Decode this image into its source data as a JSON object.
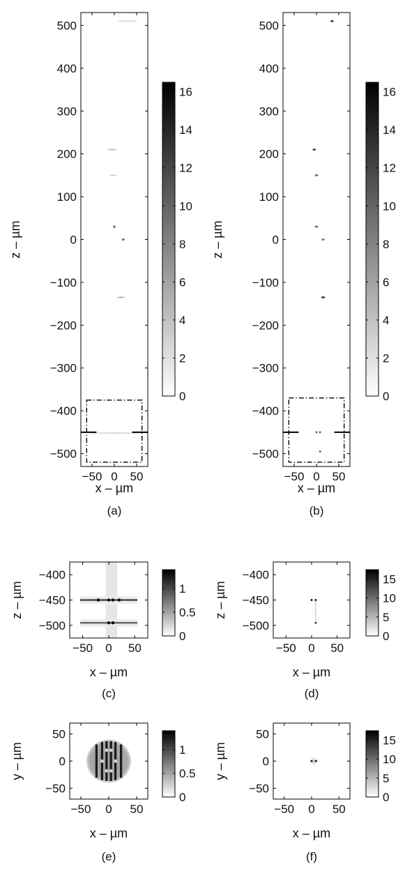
{
  "chart_data": [
    {
      "id": "a",
      "type": "heatmap",
      "caption": "(a)",
      "xlabel": "x – µm",
      "ylabel": "z – µm",
      "xlim": [
        -75,
        75
      ],
      "ylim": [
        -530,
        530
      ],
      "xticks": [
        -50,
        0,
        50
      ],
      "yticks": [
        500,
        400,
        300,
        200,
        100,
        0,
        -100,
        -200,
        -300,
        -400,
        -500
      ],
      "colorbar": {
        "min": 0,
        "max": 16.5,
        "ticks": [
          16,
          14,
          12,
          10,
          8,
          6,
          4,
          2,
          0
        ]
      },
      "features": [
        {
          "x": -5,
          "z": 210,
          "intensity": 0.25,
          "w": 14,
          "h": 2
        },
        {
          "x": -3,
          "z": 150,
          "intensity": 0.2,
          "w": 10,
          "h": 2
        },
        {
          "x": 0,
          "z": 30,
          "intensity": 0.45,
          "w": 4,
          "h": 4
        },
        {
          "x": 20,
          "z": 0,
          "intensity": 0.6,
          "w": 4,
          "h": 3
        },
        {
          "x": 15,
          "z": -135,
          "intensity": 0.3,
          "w": 12,
          "h": 2
        },
        {
          "x": 0,
          "z": -452,
          "intensity": 0.15,
          "w": 70,
          "h": 2
        },
        {
          "x": 30,
          "z": 510,
          "intensity": 0.15,
          "w": 30,
          "h": 1
        }
      ],
      "marker_line_z": -450,
      "zoom_box": {
        "x": [
          -62,
          62
        ],
        "z": [
          -375,
          -520
        ]
      }
    },
    {
      "id": "b",
      "type": "heatmap",
      "caption": "(b)",
      "xlabel": "x – µm",
      "ylabel": "z – µm",
      "xlim": [
        -75,
        75
      ],
      "ylim": [
        -530,
        530
      ],
      "xticks": [
        -50,
        0,
        50
      ],
      "yticks": [
        500,
        400,
        300,
        200,
        100,
        0,
        -100,
        -200,
        -300,
        -400,
        -500
      ],
      "colorbar": {
        "min": 0,
        "max": 16.5,
        "ticks": [
          16,
          14,
          12,
          10,
          8,
          6,
          4,
          2,
          0
        ]
      },
      "features": [
        {
          "x": -5,
          "z": 210,
          "intensity": 0.7,
          "w": 5,
          "h": 3
        },
        {
          "x": 0,
          "z": 150,
          "intensity": 0.55,
          "w": 5,
          "h": 3
        },
        {
          "x": 0,
          "z": 30,
          "intensity": 0.55,
          "w": 5,
          "h": 3
        },
        {
          "x": 15,
          "z": 0,
          "intensity": 0.5,
          "w": 5,
          "h": 3
        },
        {
          "x": 15,
          "z": -135,
          "intensity": 0.7,
          "w": 6,
          "h": 3
        },
        {
          "x": 35,
          "z": 510,
          "intensity": 0.7,
          "w": 5,
          "h": 3
        },
        {
          "x": 0,
          "z": -450,
          "intensity": 0.6,
          "w": 3,
          "h": 3
        },
        {
          "x": 8,
          "z": -450,
          "intensity": 0.6,
          "w": 3,
          "h": 3
        },
        {
          "x": 8,
          "z": -495,
          "intensity": 0.6,
          "w": 3,
          "h": 3
        }
      ],
      "marker_line_z": -450,
      "zoom_box": {
        "x": [
          -62,
          62
        ],
        "z": [
          -370,
          -520
        ]
      }
    },
    {
      "id": "c",
      "type": "heatmap",
      "caption": "(c)",
      "xlabel": "x – µm",
      "ylabel": "z – µm",
      "xlim": [
        -75,
        75
      ],
      "ylim": [
        -525,
        -375
      ],
      "xticks": [
        -50,
        0,
        50
      ],
      "yticks": [
        -400,
        -450,
        -500
      ],
      "colorbar": {
        "min": 0,
        "max": 1.4,
        "ticks": [
          1,
          0.5,
          0
        ]
      },
      "bands": [
        {
          "z": -450,
          "xmin": -55,
          "xmax": 55,
          "intensity": 0.85
        },
        {
          "z": -495,
          "xmin": -55,
          "xmax": 55,
          "intensity": 0.7
        }
      ],
      "vertical_streaks": [
        -2,
        4,
        12
      ],
      "hotspots": [
        {
          "x": -20,
          "z": -450
        },
        {
          "x": 0,
          "z": -450
        },
        {
          "x": 8,
          "z": -450
        },
        {
          "x": 20,
          "z": -450
        },
        {
          "x": 0,
          "z": -495
        },
        {
          "x": 8,
          "z": -495
        }
      ]
    },
    {
      "id": "d",
      "type": "heatmap",
      "caption": "(d)",
      "xlabel": "x – µm",
      "ylabel": "z – µm",
      "xlim": [
        -75,
        75
      ],
      "ylim": [
        -525,
        -375
      ],
      "xticks": [
        -50,
        0,
        50
      ],
      "yticks": [
        -400,
        -450,
        -500
      ],
      "colorbar": {
        "min": 0,
        "max": 17.5,
        "ticks": [
          15,
          10,
          5,
          0
        ]
      },
      "features": [
        {
          "x": 0,
          "z": -450,
          "intensity": 0.9,
          "w": 3,
          "h": 3
        },
        {
          "x": 8,
          "z": -450,
          "intensity": 0.9,
          "w": 3,
          "h": 3
        },
        {
          "x": 8,
          "z": -495,
          "intensity": 0.75,
          "w": 3,
          "h": 3
        }
      ],
      "faint_line": {
        "x": 8,
        "z": [
          -450,
          -495
        ]
      }
    },
    {
      "id": "e",
      "type": "heatmap",
      "caption": "(e)",
      "xlabel": "x – µm",
      "ylabel": "y – µm",
      "xlim": [
        -70,
        70
      ],
      "ylim": [
        -70,
        70
      ],
      "xticks": [
        -50,
        0,
        50
      ],
      "yticks": [
        50,
        0,
        -50
      ],
      "colorbar": {
        "min": 0,
        "max": 1.4,
        "ticks": [
          1,
          0.5,
          0
        ]
      },
      "disk": {
        "cx": 0,
        "cy": 0,
        "r": 40
      },
      "stripes": [
        -22,
        -12,
        -4,
        4,
        12,
        22
      ],
      "hotspots": [
        {
          "x": -4,
          "y": 20
        },
        {
          "x": 4,
          "y": 20
        },
        {
          "x": -4,
          "y": -18
        },
        {
          "x": 4,
          "y": -18
        },
        {
          "x": -12,
          "y": 0
        },
        {
          "x": 12,
          "y": 0
        }
      ]
    },
    {
      "id": "f",
      "type": "heatmap",
      "caption": "(f)",
      "xlabel": "x – µm",
      "ylabel": "y – µm",
      "xlim": [
        -70,
        70
      ],
      "ylim": [
        -70,
        70
      ],
      "xticks": [
        -50,
        0,
        50
      ],
      "yticks": [
        50,
        0,
        -50
      ],
      "colorbar": {
        "min": 0,
        "max": 17.5,
        "ticks": [
          15,
          10,
          5,
          0
        ]
      },
      "features": [
        {
          "x": 0,
          "y": 0,
          "intensity": 0.9,
          "w": 3,
          "h": 3
        },
        {
          "x": 8,
          "y": 0,
          "intensity": 0.9,
          "w": 3,
          "h": 3
        }
      ],
      "faint_glow": {
        "x": 4,
        "y": 0,
        "r": 10
      }
    }
  ]
}
